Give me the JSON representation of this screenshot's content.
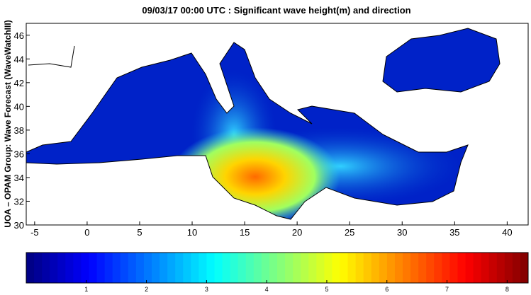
{
  "title": "09/03/17 00:00 UTC : Significant wave height(m) and direction",
  "y_axis_label": "UOA – OPAM Group: Wave Forecast  (WaveWatchIII)",
  "map": {
    "xlim": [
      -5.8,
      42
    ],
    "ylim": [
      30,
      47
    ],
    "xticks": [
      -5,
      0,
      5,
      10,
      15,
      20,
      25,
      30,
      35,
      40
    ],
    "yticks": [
      30,
      32,
      34,
      36,
      38,
      40,
      42,
      44,
      46
    ]
  },
  "colorbar": {
    "clim": [
      0,
      8.35
    ],
    "ticks": [
      1,
      2,
      3,
      4,
      5,
      6,
      7,
      8
    ]
  }
}
